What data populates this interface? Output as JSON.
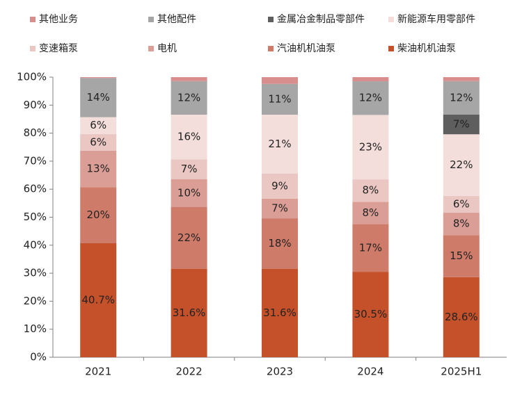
{
  "chart_data": {
    "type": "bar",
    "stacked": true,
    "categories": [
      "2021",
      "2022",
      "2023",
      "2024",
      "2025H1"
    ],
    "ylim": [
      0,
      100
    ],
    "yticks": [
      "0%",
      "10%",
      "20%",
      "30%",
      "40%",
      "50%",
      "60%",
      "70%",
      "80%",
      "90%",
      "100%"
    ],
    "series": [
      {
        "name": "柴油机机油泵",
        "color": "#C4512A",
        "values": [
          40.7,
          31.6,
          31.6,
          30.5,
          28.6
        ],
        "labels": [
          "40.7%",
          "31.6%",
          "31.6%",
          "30.5%",
          "28.6%"
        ]
      },
      {
        "name": "汽油机机油泵",
        "color": "#CF7B6A",
        "values": [
          20,
          22,
          18,
          17,
          15
        ],
        "labels": [
          "20%",
          "22%",
          "18%",
          "17%",
          "15%"
        ]
      },
      {
        "name": "电机",
        "color": "#DB9E96",
        "values": [
          13,
          10,
          7,
          8,
          8
        ],
        "labels": [
          "13%",
          "10%",
          "7%",
          "8%",
          "8%"
        ]
      },
      {
        "name": "变速箱泵",
        "color": "#EBC7C3",
        "values": [
          6,
          7,
          9,
          8,
          6
        ],
        "labels": [
          "6%",
          "7%",
          "9%",
          "8%",
          "6%"
        ]
      },
      {
        "name": "新能源车用零部件",
        "color": "#F3DEDB",
        "values": [
          6,
          16,
          21,
          23,
          22
        ],
        "labels": [
          "6%",
          "16%",
          "21%",
          "23%",
          "22%"
        ]
      },
      {
        "name": "金属冶金制品零部件",
        "color": "#5E5E5E",
        "values": [
          0,
          0,
          0,
          0,
          7
        ],
        "labels": [
          "",
          "",
          "",
          "",
          "7%"
        ]
      },
      {
        "name": "其他配件",
        "color": "#A6A6A6",
        "values": [
          14,
          12,
          11,
          12,
          12
        ],
        "labels": [
          "14%",
          "12%",
          "11%",
          "12%",
          "12%"
        ]
      },
      {
        "name": "其他业务",
        "color": "#D98E8E",
        "values": [
          0.3,
          1.4,
          2.4,
          1.5,
          1.4
        ],
        "labels": [
          "",
          "",
          "",
          "",
          ""
        ]
      }
    ],
    "legend_order": [
      "其他业务",
      "其他配件",
      "金属冶金制品零部件",
      "新能源车用零部件",
      "变速箱泵",
      "电机",
      "汽油机机油泵",
      "柴油机机油泵"
    ],
    "legend_position": "top"
  }
}
